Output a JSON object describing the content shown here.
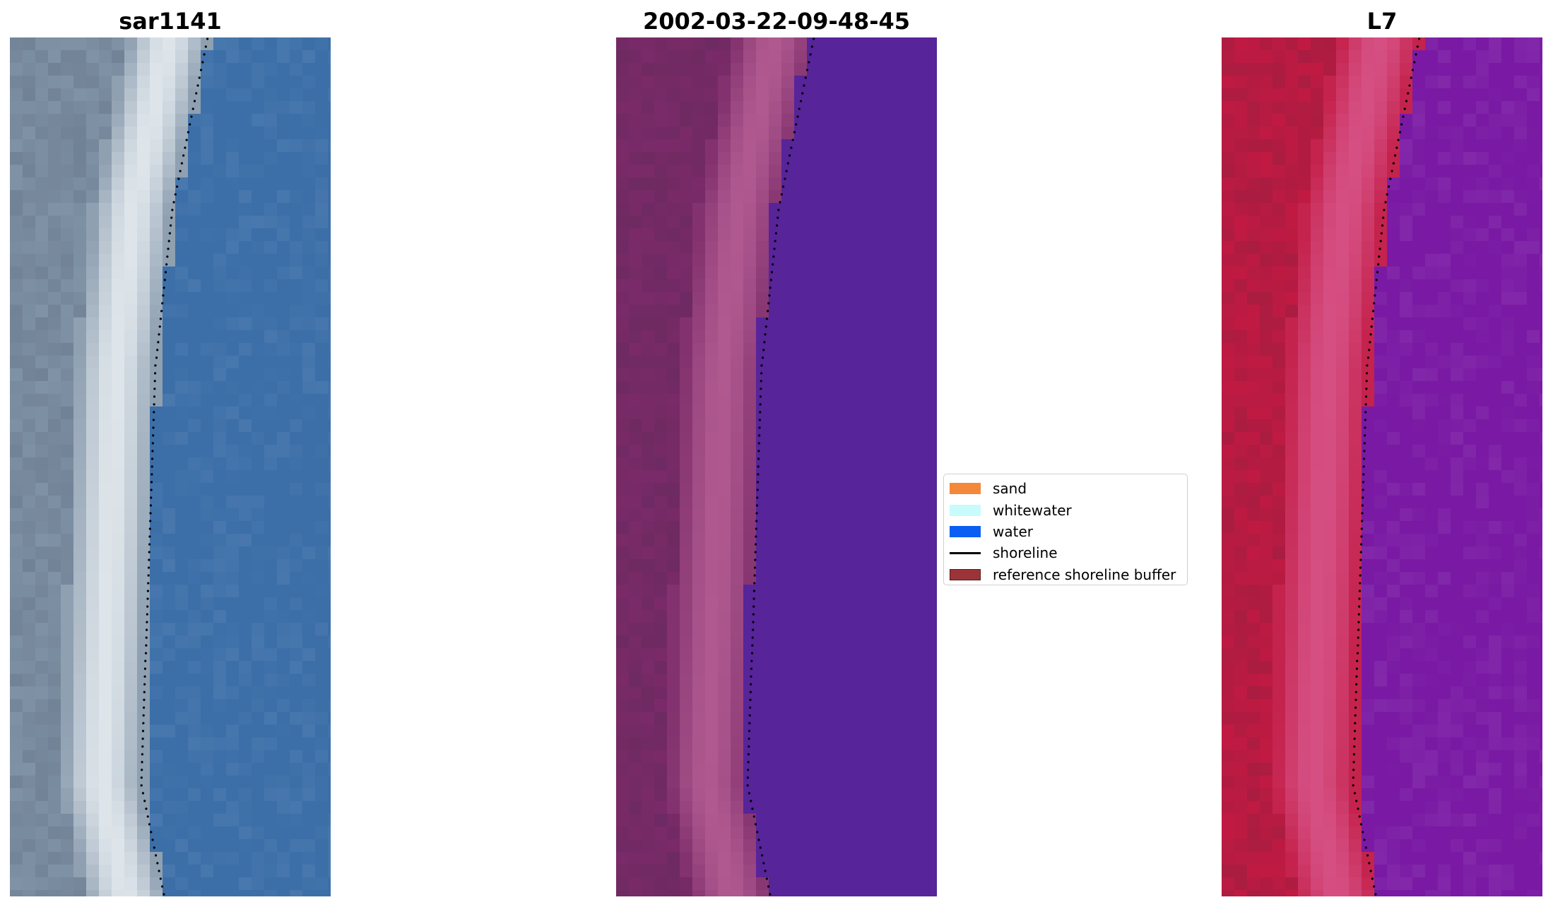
{
  "panels": [
    {
      "title": "sar1141",
      "image": "rgb-satellite-tile",
      "palette": {
        "land": "#7f92a6",
        "beach": "#e8eef2",
        "water": "#3c6fa8"
      }
    },
    {
      "title": "2002-03-22-09-48-45",
      "image": "classified-tile",
      "palette": {
        "land": "#7a2a68",
        "beach": "#b55e94",
        "water": "#57249a"
      }
    },
    {
      "title": "L7",
      "image": "false-colour-tile",
      "palette": {
        "land": "#c11a42",
        "beach": "#d8558a",
        "water": "#7a1aa4"
      }
    }
  ],
  "legend": {
    "items": [
      {
        "label": "sand",
        "color": "#f4883a",
        "kind": "patch"
      },
      {
        "label": "whitewater",
        "color": "#c8fbfb",
        "kind": "patch"
      },
      {
        "label": "water",
        "color": "#0a5ff2",
        "kind": "patch"
      },
      {
        "label": "shoreline",
        "color": "#000000",
        "kind": "line"
      },
      {
        "label": "reference shoreline buffer",
        "color": "#9b3438",
        "kind": "patch"
      }
    ]
  }
}
